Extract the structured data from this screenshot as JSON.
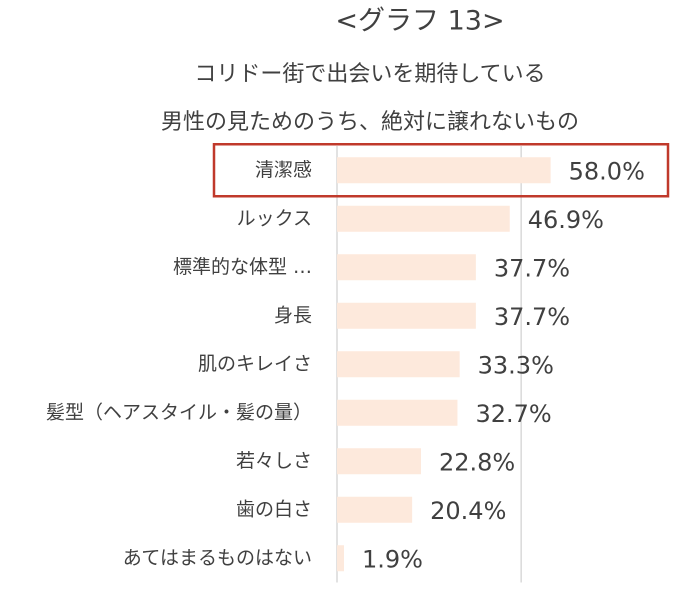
{
  "chart_data": {
    "type": "hbar",
    "title": "<グラフ 13>",
    "subtitle": [
      "コリドー街で出会いを期待している",
      "男性の見ためのうち、絶対に譲れないもの"
    ],
    "categories": [
      "清潔感",
      "ルックス",
      "標準的な体型 …",
      "身長",
      "肌のキレイさ",
      "髪型（ヘアスタイル・髪の量）",
      "若々しさ",
      "歯の白さ",
      "あてはまるものはない"
    ],
    "values": [
      58.0,
      46.9,
      37.7,
      37.7,
      33.3,
      32.7,
      22.8,
      20.4,
      1.9
    ],
    "value_labels": [
      "58.0%",
      "46.9%",
      "37.7%",
      "37.7%",
      "33.3%",
      "32.7%",
      "22.8%",
      "20.4%",
      "1.9%"
    ],
    "color": "#fde9dc",
    "highlight_color": "#c0392b",
    "highlight_index": 0,
    "xlim": [
      0,
      60
    ],
    "xticks": [
      0,
      50
    ],
    "grid": true
  }
}
